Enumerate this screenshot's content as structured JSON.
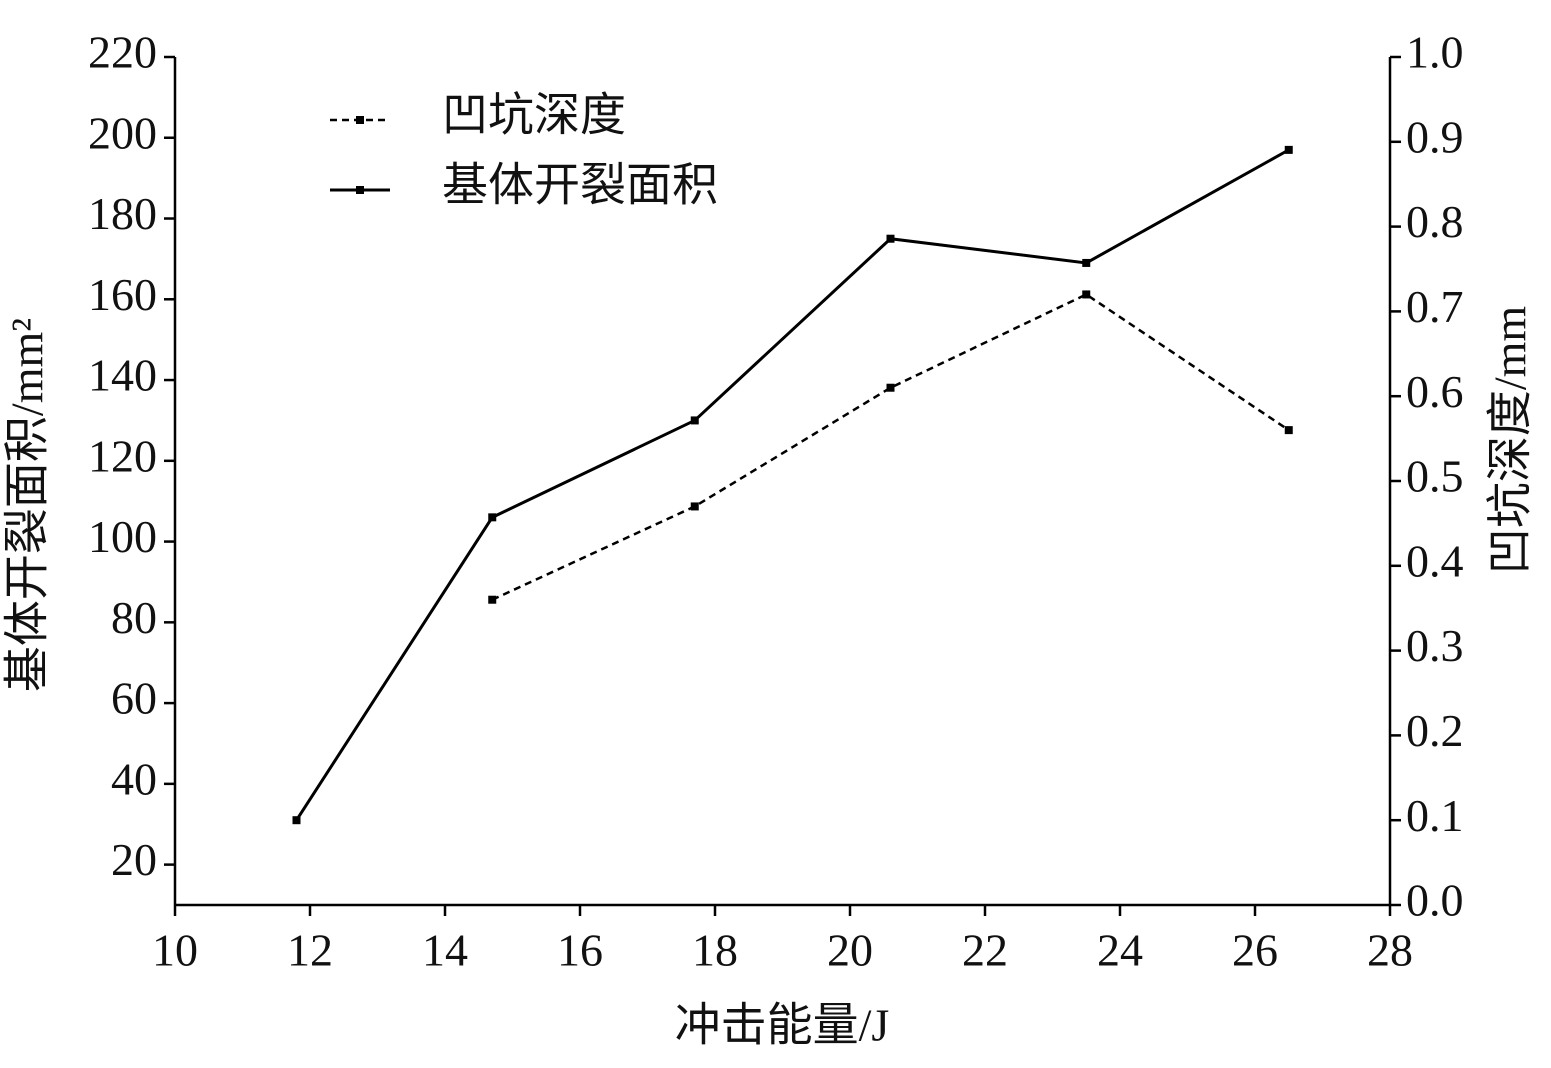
{
  "chart_data": {
    "type": "line",
    "x_label": "冲击能量/J",
    "y_label": "基体开裂面积/mm²",
    "y2_label": "凹坑深度/mm",
    "x": [
      11.8,
      14.7,
      17.7,
      20.6,
      23.5,
      26.5
    ],
    "series": [
      {
        "name": "凹坑深度",
        "color": "#000000",
        "dash": true,
        "axis": "y2",
        "values": [
          null,
          0.36,
          0.47,
          0.61,
          0.72,
          0.56
        ]
      },
      {
        "name": "基体开裂面积",
        "color": "#000000",
        "dash": false,
        "values": [
          31,
          106,
          130,
          175,
          169,
          197
        ]
      }
    ],
    "xlim": [
      10,
      28
    ],
    "xticks": [
      10,
      12,
      14,
      16,
      18,
      20,
      22,
      24,
      26,
      28
    ],
    "ylim": [
      10,
      220
    ],
    "yticks": [
      20,
      40,
      60,
      80,
      100,
      120,
      140,
      160,
      180,
      200,
      220
    ],
    "y2lim": [
      0,
      1
    ],
    "y2ticks": [
      {
        "value": 0,
        "label": "0.0"
      },
      0.1,
      0.2,
      0.3,
      0.4,
      0.5,
      0.6,
      0.7,
      0.8,
      0.9,
      {
        "value": 1,
        "label": "1.0"
      }
    ],
    "legend": "top-left",
    "grid": false
  }
}
